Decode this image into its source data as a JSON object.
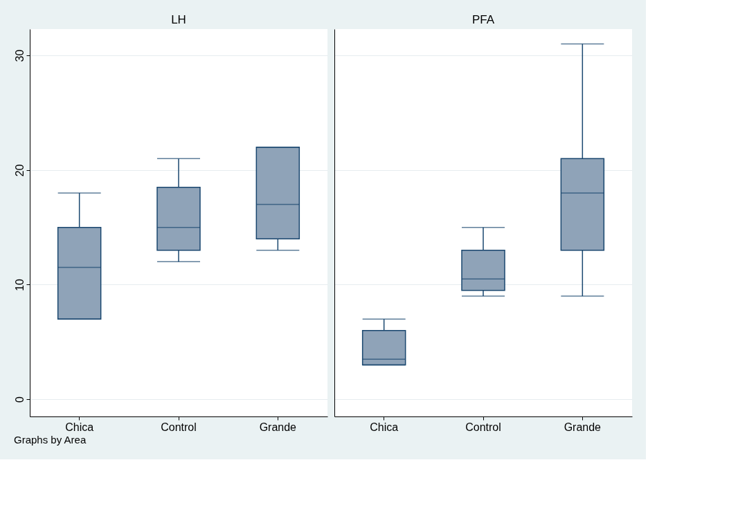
{
  "chart_data": [
    {
      "type": "box",
      "title": "LH",
      "categories": [
        "Chica",
        "Control",
        "Grande"
      ],
      "ylim": [
        -1.5,
        32.3
      ],
      "yticks": [
        0,
        10,
        20,
        30
      ],
      "grid": "y",
      "annotations": [
        "Graphs by Area"
      ],
      "series": [
        {
          "color": "#8fa3b8",
          "boxes": [
            {
              "low": 7,
              "q1": 7,
              "median": 11.5,
              "q3": 15,
              "high": 18
            },
            {
              "low": 12,
              "q1": 13,
              "median": 15,
              "q3": 18.5,
              "high": 21
            },
            {
              "low": 13,
              "q1": 14,
              "median": 17,
              "q3": 22,
              "high": 22
            }
          ]
        }
      ]
    },
    {
      "type": "box",
      "title": "PFA",
      "categories": [
        "Chica",
        "Control",
        "Grande"
      ],
      "ylim": [
        -1.5,
        32.3
      ],
      "yticks": [
        0,
        10,
        20,
        30
      ],
      "grid": "y",
      "tick_labels": "x",
      "series": [
        {
          "color": "#8fa3b8",
          "boxes": [
            {
              "low": 3,
              "q1": 3,
              "median": 3.5,
              "q3": 6,
              "high": 7
            },
            {
              "low": 9,
              "q1": 9.5,
              "median": 10.5,
              "q3": 13,
              "high": 15
            },
            {
              "low": 9,
              "q1": 13,
              "median": 18,
              "q3": 21,
              "high": 31
            }
          ]
        }
      ]
    }
  ]
}
